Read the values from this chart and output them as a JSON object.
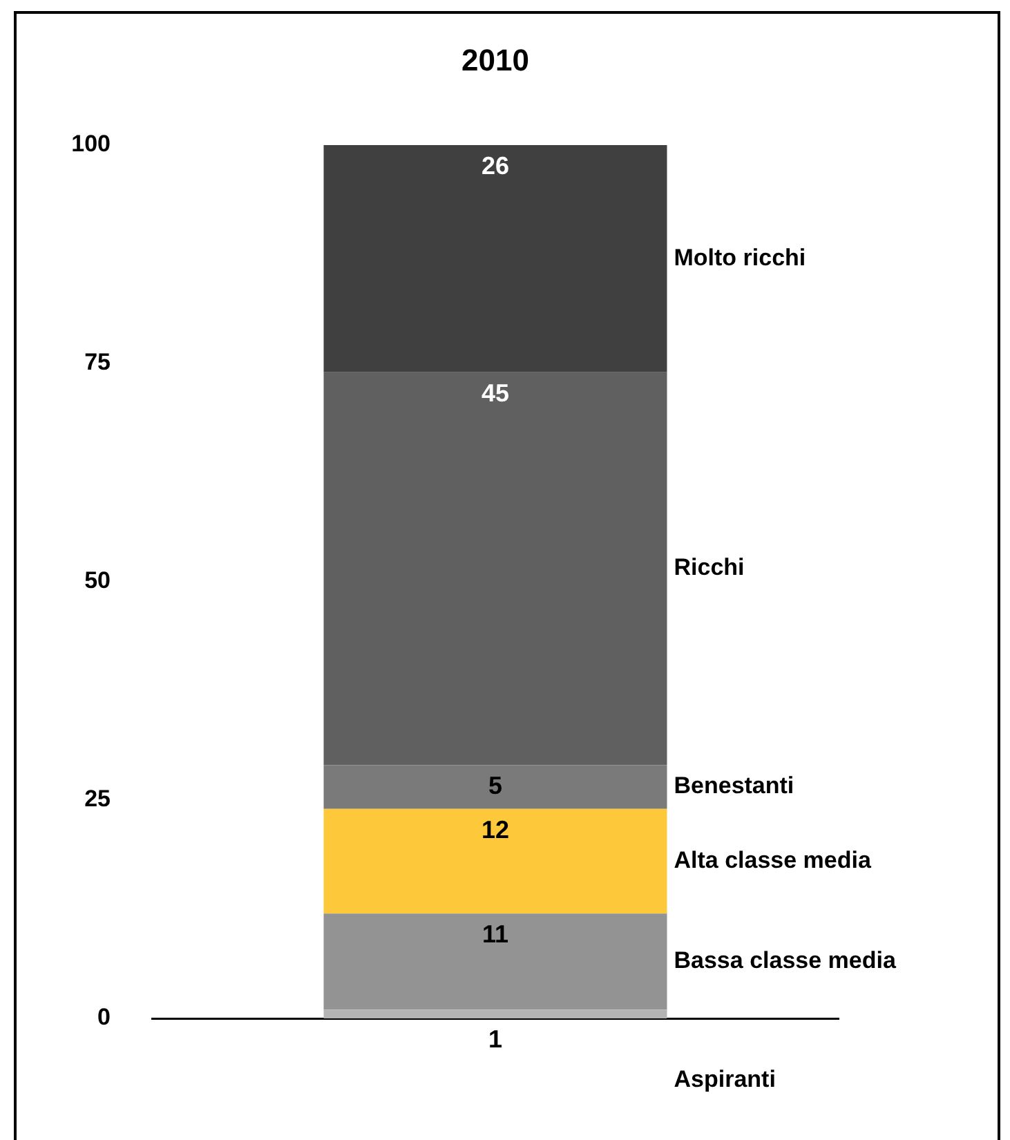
{
  "chart_data": {
    "type": "bar",
    "title": "2010",
    "stacked": true,
    "data_labels": true,
    "legend": false,
    "grid": false,
    "categories": [
      null
    ],
    "series": [
      {
        "name": "Aspiranti",
        "color": "#b4b4b4",
        "values": [
          1
        ]
      },
      {
        "name": "Bassa classe media",
        "color": "#939393",
        "values": [
          11
        ]
      },
      {
        "name": "Alta classe media",
        "color": "#fdc93a",
        "values": [
          12
        ]
      },
      {
        "name": "Benestanti",
        "color": "#7a7a7a",
        "values": [
          5
        ]
      },
      {
        "name": "Ricchi",
        "color": "#606060",
        "values": [
          45
        ]
      },
      {
        "name": "Molto ricchi",
        "color": "#404040",
        "values": [
          26
        ]
      }
    ],
    "ylim": [
      0,
      100
    ],
    "yticks": [
      0,
      25,
      50,
      75,
      100
    ]
  }
}
